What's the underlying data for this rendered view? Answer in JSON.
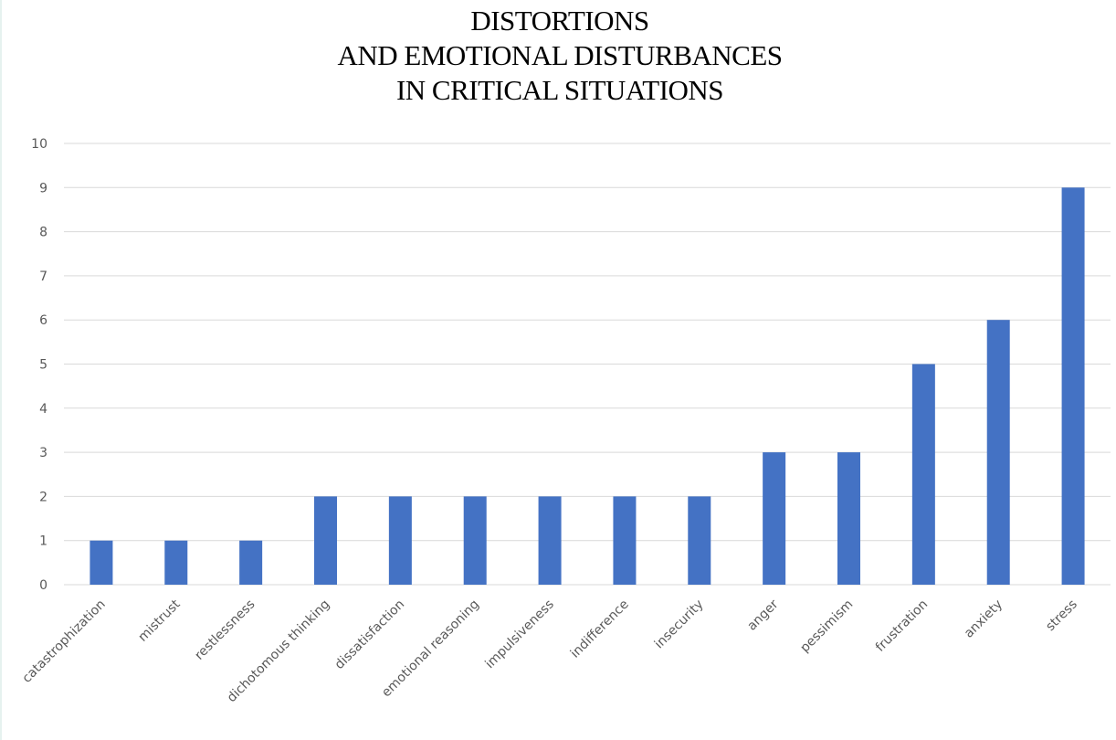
{
  "chart_data": {
    "type": "bar",
    "title": [
      "DISTORTIONS",
      "AND EMOTIONAL DISTURBANCES",
      "IN CRITICAL SITUATIONS"
    ],
    "categories": [
      "catastrophization",
      "mistrust",
      "restlessness",
      "dichotomous thinking",
      "dissatisfaction",
      "emotional reasoning",
      "impulsiveness",
      "indifference",
      "insecurity",
      "anger",
      "pessimism",
      "frustration",
      "anxiety",
      "stress"
    ],
    "values": [
      1,
      1,
      1,
      2,
      2,
      2,
      2,
      2,
      2,
      3,
      3,
      5,
      6,
      9
    ],
    "y_ticks": [
      "0",
      "1",
      "2",
      "3",
      "4",
      "5",
      "6",
      "7",
      "8",
      "9",
      "10"
    ],
    "ylim": [
      0,
      10
    ],
    "grid": true,
    "legend": "none",
    "bar_color": "#4472c4",
    "grid_color": "#d9d9d9",
    "tick_label_color": "#595959"
  }
}
